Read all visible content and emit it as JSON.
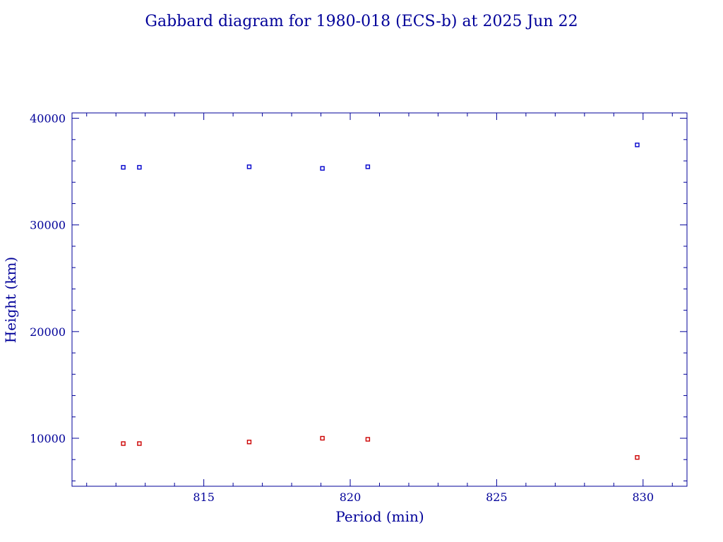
{
  "chart_data": {
    "type": "scatter",
    "title": "Gabbard diagram for 1980-018 (ECS-b) at 2025 Jun 22",
    "xlabel": "Period (min)",
    "ylabel": "Height (km)",
    "xlim": [
      810.5,
      831.5
    ],
    "ylim": [
      5500,
      40500
    ],
    "x_ticks": [
      815,
      820,
      825,
      830
    ],
    "x_tick_labels": [
      "815",
      "820",
      "825",
      "830"
    ],
    "y_ticks": [
      10000,
      20000,
      30000,
      40000
    ],
    "y_tick_labels": [
      "10000",
      "20000",
      "30000",
      "40000"
    ],
    "x_minor_step": 1,
    "y_minor_step": 2000,
    "grid": false,
    "axis_color": "#000099",
    "series": [
      {
        "color": "#0000cc",
        "points": [
          [
            812.25,
            35400
          ],
          [
            812.8,
            35400
          ],
          [
            816.55,
            35450
          ],
          [
            819.05,
            35300
          ],
          [
            820.6,
            35450
          ],
          [
            829.8,
            37500
          ]
        ]
      },
      {
        "color": "#cc0000",
        "points": [
          [
            812.25,
            9500
          ],
          [
            812.8,
            9500
          ],
          [
            816.55,
            9650
          ],
          [
            819.05,
            10000
          ],
          [
            820.6,
            9900
          ],
          [
            829.8,
            8200
          ]
        ]
      }
    ]
  }
}
